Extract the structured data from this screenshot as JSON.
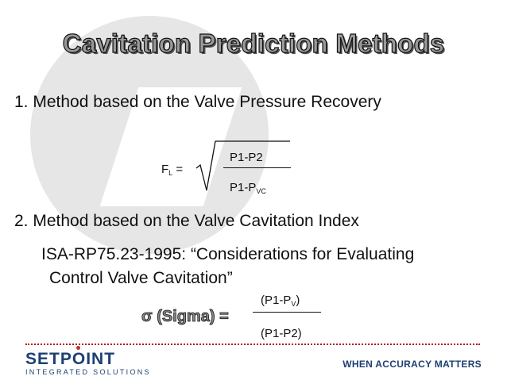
{
  "slide": {
    "title": "Cavitation Prediction Methods",
    "method1": "1. Method based on the Valve Pressure Recovery",
    "fl_formula": {
      "lhs_main": "F",
      "lhs_sub": "L",
      "equals": "=",
      "numerator": "P1-P2",
      "denominator_main": "P1-P",
      "denominator_sub": "VC"
    },
    "method2": "2. Method based on the Valve Cavitation Index",
    "standard_line1": "ISA-RP75.23-1995: “Considerations for Evaluating",
    "standard_line2": "Control Valve Cavitation”",
    "sigma_formula": {
      "label": "σ (Sigma) =",
      "numerator_main": "(P1-P",
      "numerator_sub": "V",
      "numerator_close": ")",
      "denominator": "(P1-P2)"
    }
  },
  "footer": {
    "logo_part1": "SETP",
    "logo_o": "O",
    "logo_part2": "INT",
    "logo_subtitle": "INTEGRATED SOLUTIONS",
    "tagline": "WHEN ACCURACY MATTERS"
  }
}
